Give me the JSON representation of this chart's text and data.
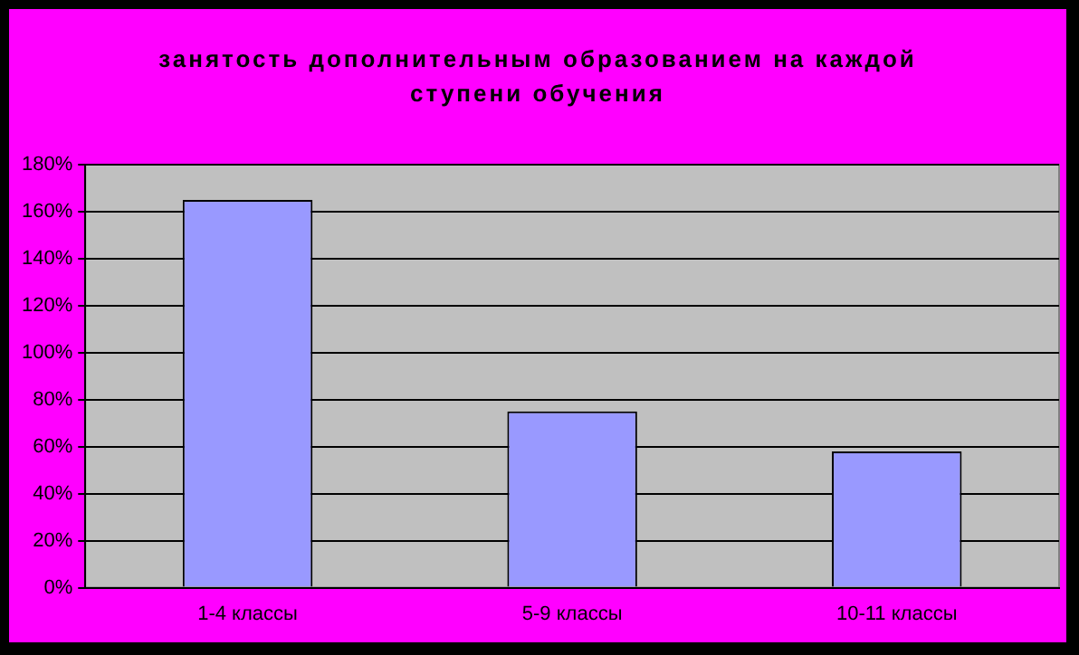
{
  "chart_data": {
    "type": "bar",
    "title": "занятость дополнительным образованием на каждой ступени обучения",
    "categories": [
      "1-4 классы",
      "5-9 классы",
      "10-11 классы"
    ],
    "values": [
      165,
      75,
      58
    ],
    "color": "#9999ff",
    "ylim": [
      0,
      180
    ],
    "yticks": [
      {
        "value": 0,
        "label": "0%"
      },
      {
        "value": 20,
        "label": "20%"
      },
      {
        "value": 40,
        "label": "40%"
      },
      {
        "value": 60,
        "label": "60%"
      },
      {
        "value": 80,
        "label": "80%"
      },
      {
        "value": 100,
        "label": "100%"
      },
      {
        "value": 120,
        "label": "120%"
      },
      {
        "value": 140,
        "label": "140%"
      },
      {
        "value": 160,
        "label": "160%"
      },
      {
        "value": 180,
        "label": "180%"
      }
    ],
    "grid": "y",
    "legend": false
  }
}
